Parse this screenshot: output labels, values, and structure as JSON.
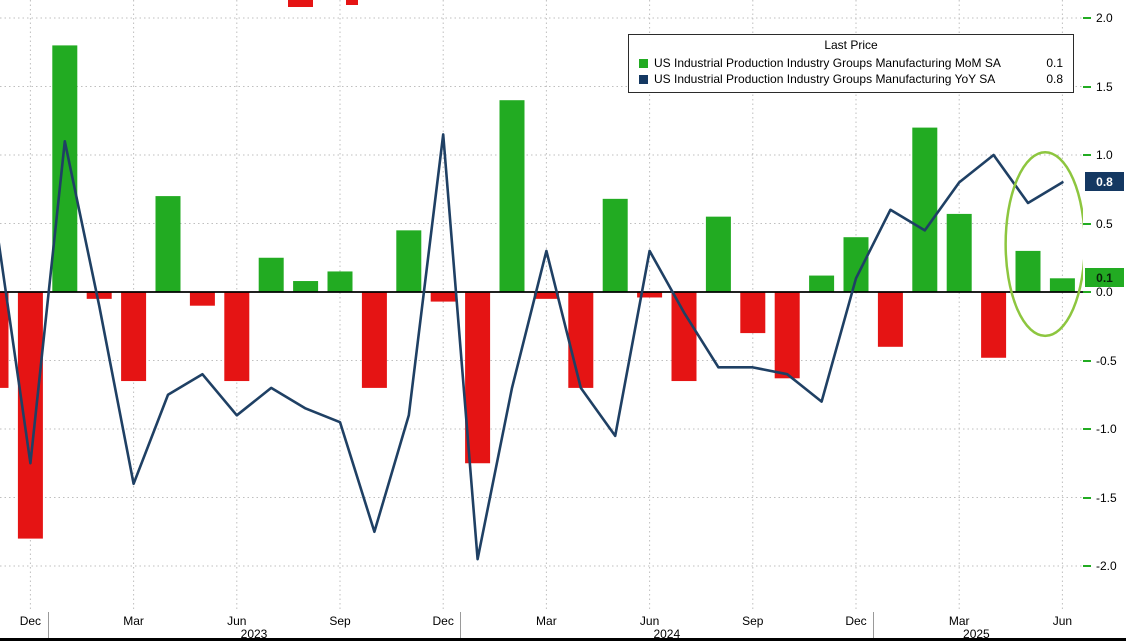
{
  "legend": {
    "title": "Last Price",
    "series": [
      {
        "label": "US Industrial Production Industry Groups Manufacturing MoM SA",
        "value": "0.1"
      },
      {
        "label": "US Industrial Production Industry Groups Manufacturing YoY SA",
        "value": "0.8"
      }
    ]
  },
  "colors": {
    "bar_positive": "#22ab22",
    "bar_negative": "#e51414",
    "line": "#1f4064",
    "swatch_yoy": "#143862",
    "annotation_ellipse": "#8dc63f",
    "grid": "#bfbfbf",
    "zero_line": "#000000",
    "axis_tick": "#22ab22"
  },
  "badges": [
    {
      "text": "0.8",
      "value": 0.8,
      "bg": "#143862",
      "fg": "#ffffff"
    },
    {
      "text": "0.1",
      "value": 0.1,
      "bg": "#22ab22",
      "fg": "#08230a"
    }
  ],
  "y_axis": {
    "tick_labels": [
      "2.0",
      "1.5",
      "1.0",
      "0.5",
      "0.0",
      "-0.5",
      "-1.0",
      "-1.5",
      "-2.0"
    ]
  },
  "x_axis": {
    "quarter_tick_labels": [
      "Dec",
      "Mar",
      "Jun",
      "Sep",
      "Dec",
      "Mar",
      "Jun",
      "Sep",
      "Dec",
      "Mar",
      "Jun"
    ],
    "year_labels": [
      "2023",
      "2024",
      "2025"
    ]
  },
  "chart_data": {
    "type": "bar",
    "title": "US Industrial Production Industry Groups Manufacturing (MoM bars, YoY line)",
    "x": [
      "Nov 2022",
      "Dec 2022",
      "Jan 2023",
      "Feb 2023",
      "Mar 2023",
      "Apr 2023",
      "May 2023",
      "Jun 2023",
      "Jul 2023",
      "Aug 2023",
      "Sep 2023",
      "Oct 2023",
      "Nov 2023",
      "Dec 2023",
      "Jan 2024",
      "Feb 2024",
      "Mar 2024",
      "Apr 2024",
      "May 2024",
      "Jun 2024",
      "Jul 2024",
      "Aug 2024",
      "Sep 2024",
      "Oct 2024",
      "Nov 2024",
      "Dec 2024",
      "Jan 2025",
      "Feb 2025",
      "Mar 2025",
      "Apr 2025",
      "May 2025",
      "Jun 2025"
    ],
    "series": [
      {
        "name": "US Industrial Production Industry Groups Manufacturing MoM SA",
        "type": "bar",
        "values": [
          -0.7,
          -1.8,
          1.8,
          -0.05,
          -0.65,
          0.7,
          -0.1,
          -0.65,
          0.25,
          0.08,
          0.15,
          -0.7,
          0.45,
          -0.07,
          -1.25,
          1.4,
          -0.05,
          -0.7,
          0.68,
          -0.04,
          -0.65,
          0.55,
          -0.3,
          -0.63,
          0.12,
          0.4,
          -0.4,
          1.2,
          0.57,
          -0.48,
          0.3,
          0.1
        ],
        "last_value": 0.1
      },
      {
        "name": "US Industrial Production Industry Groups Manufacturing YoY SA",
        "type": "line",
        "values": [
          0.5,
          -1.25,
          1.1,
          -0.1,
          -1.4,
          -0.75,
          -0.6,
          -0.9,
          -0.7,
          -0.85,
          -0.95,
          -1.75,
          -0.9,
          1.15,
          -1.95,
          -0.7,
          0.3,
          -0.7,
          -1.05,
          0.3,
          -0.15,
          -0.55,
          -0.55,
          -0.6,
          -0.8,
          0.1,
          0.6,
          0.45,
          0.8,
          1.0,
          0.65,
          0.8
        ],
        "last_value": 0.8
      }
    ],
    "ylim": [
      -2.05,
      2.05
    ],
    "grid": true,
    "legend_position": "top-right",
    "annotation": {
      "type": "ellipse",
      "highlight_months": [
        "May 2025",
        "Jun 2025"
      ],
      "center_value": 0.35,
      "half_span_value": 0.67
    }
  }
}
